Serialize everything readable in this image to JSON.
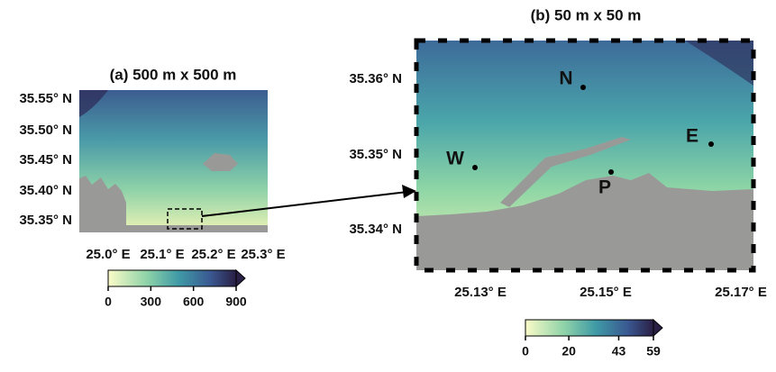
{
  "panels": [
    {
      "title": "(a) 500 m x 500 m",
      "lat_labels": [
        "35.55° N",
        "35.50° N",
        "35.45° N",
        "35.40° N",
        "35.35° N"
      ],
      "lon_labels": [
        "25.0° E",
        "25.1° E",
        "25.2° E",
        "25.3° E"
      ],
      "colorbar_ticks": [
        0,
        300,
        600,
        900
      ]
    },
    {
      "title": "(b) 50 m x 50 m",
      "lat_labels": [
        "35.36° N",
        "35.35° N",
        "35.34° N"
      ],
      "lon_labels": [
        "25.13° E",
        "25.15° E",
        "25.17° E"
      ],
      "colorbar_ticks": [
        0,
        20,
        43,
        59
      ],
      "points": [
        "N",
        "W",
        "E",
        "P"
      ]
    }
  ]
}
